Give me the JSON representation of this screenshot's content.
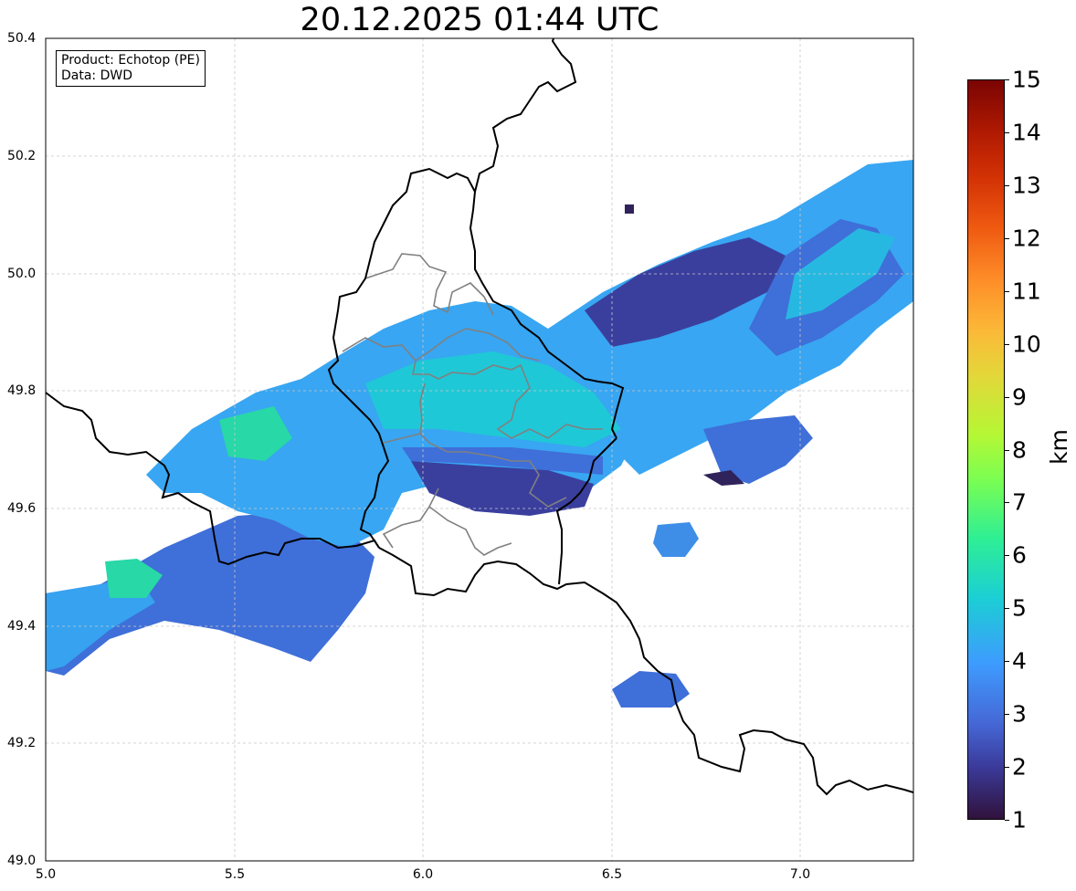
{
  "title": "20.12.2025 01:44 UTC",
  "info": {
    "product": "Product: Echotop (PE)",
    "data": "Data: DWD"
  },
  "axes": {
    "x_ticks": [
      "5.0",
      "5.5",
      "6.0",
      "6.5",
      "7.0"
    ],
    "x_values": [
      5.0,
      5.5,
      6.0,
      6.5,
      7.0
    ],
    "y_ticks": [
      "49.0",
      "49.2",
      "49.4",
      "49.6",
      "49.8",
      "50.0",
      "50.2",
      "50.4"
    ],
    "y_values": [
      49.0,
      49.2,
      49.4,
      49.6,
      49.8,
      50.0,
      50.2,
      50.4
    ],
    "lon_range": [
      5.0,
      7.3
    ],
    "lat_range": [
      49.0,
      50.4
    ],
    "grid": true
  },
  "colorbar": {
    "label": "km",
    "ticks": [
      "1",
      "2",
      "3",
      "4",
      "5",
      "6",
      "7",
      "8",
      "9",
      "10",
      "11",
      "12",
      "13",
      "14",
      "15"
    ],
    "range": [
      1,
      15
    ],
    "colormap": "turbo"
  },
  "colors": {
    "echo_cyan": "#1fc8d6",
    "echo_lightblue": "#38a6f2",
    "echo_blue": "#3f70dc",
    "echo_darkblue": "#3a3f9e",
    "echo_darkest": "#30225a",
    "echo_green": "#25d8a8",
    "border_country": "#000000",
    "border_region": "#808080"
  }
}
